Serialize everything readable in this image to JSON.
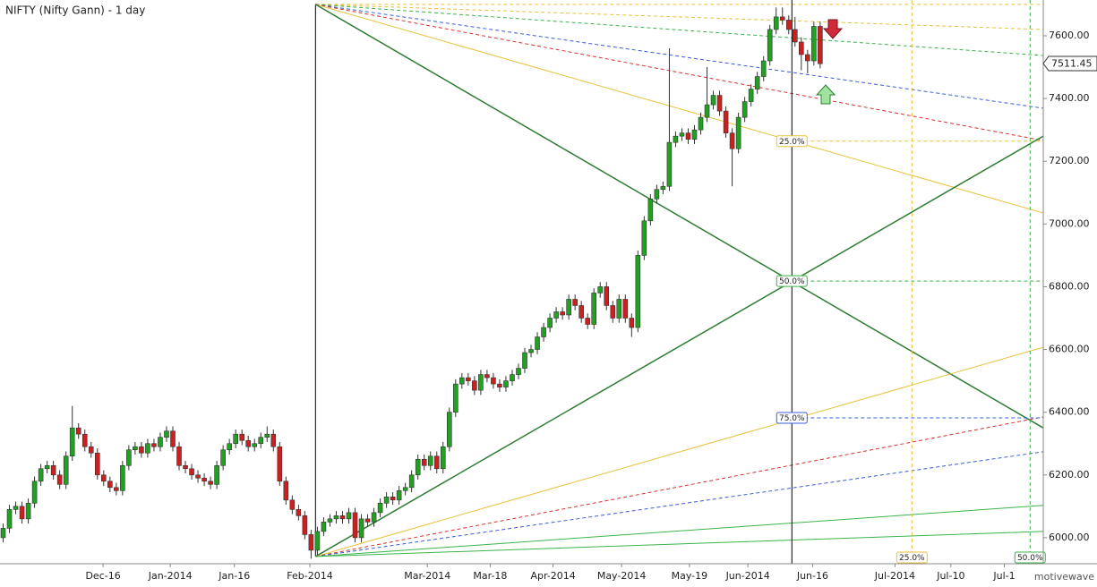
{
  "chart_data": {
    "type": "candlestick",
    "title": "NIFTY (Nifty Gann) - 1 day",
    "watermark": "motivewave",
    "colors": {
      "up": "#22a022",
      "down": "#cc2020",
      "wick": "#333333"
    },
    "xlim": [
      0,
      166
    ],
    "ylim": [
      5917,
      7714
    ],
    "yticks": [
      {
        "value": 6000,
        "label": "6000.00"
      },
      {
        "value": 6200,
        "label": "6200.00"
      },
      {
        "value": 6400,
        "label": "6400.00"
      },
      {
        "value": 6600,
        "label": "6600.00"
      },
      {
        "value": 6800,
        "label": "6800.00"
      },
      {
        "value": 7000,
        "label": "7000.00"
      },
      {
        "value": 7200,
        "label": "7200.00"
      },
      {
        "value": 7400,
        "label": "7400.00"
      },
      {
        "value": 7600,
        "label": "7600.00"
      }
    ],
    "xticks": [
      {
        "value": 16.4,
        "label": "Dec-16"
      },
      {
        "value": 27.1,
        "label": "Jan-2014"
      },
      {
        "value": 37.3,
        "label": "Jan-16"
      },
      {
        "value": 49.3,
        "label": "Feb-2014"
      },
      {
        "value": 68,
        "label": "Mar-2014"
      },
      {
        "value": 78,
        "label": "Mar-18"
      },
      {
        "value": 88,
        "label": "Apr-2014"
      },
      {
        "value": 98.9,
        "label": "May-2014"
      },
      {
        "value": 109.7,
        "label": "May-19"
      },
      {
        "value": 119,
        "label": "Jun-2014"
      },
      {
        "value": 129.3,
        "label": "Jun-16"
      },
      {
        "value": 142.4,
        "label": "Jul-2014"
      },
      {
        "value": 151.3,
        "label": "Jul-10"
      },
      {
        "value": 159.8,
        "label": "Jul-1"
      }
    ],
    "last_price": 7511.45,
    "x": [
      0,
      1,
      2,
      3,
      4,
      5,
      6,
      7,
      8,
      9,
      10,
      11,
      12,
      13,
      14,
      15,
      16,
      17,
      18,
      19,
      20,
      21,
      22,
      23,
      24,
      25,
      26,
      27,
      28,
      29,
      30,
      31,
      32,
      33,
      34,
      35,
      36,
      37,
      38,
      39,
      40,
      41,
      42,
      43,
      44,
      45,
      46,
      47,
      48,
      49,
      50,
      51,
      52,
      53,
      54,
      55,
      56,
      57,
      58,
      59,
      60,
      61,
      62,
      63,
      64,
      65,
      66,
      67,
      68,
      69,
      70,
      71,
      72,
      73,
      74,
      75,
      76,
      77,
      78,
      79,
      80,
      81,
      82,
      83,
      84,
      85,
      86,
      87,
      88,
      89,
      90,
      91,
      92,
      93,
      94,
      95,
      96,
      97,
      98,
      99,
      100,
      101,
      102,
      103,
      104,
      105,
      106,
      107,
      108,
      109,
      110,
      111,
      112,
      113,
      114,
      115,
      116,
      117,
      118,
      119,
      120,
      121,
      122,
      123,
      124,
      125,
      126,
      127,
      128,
      129,
      130
    ],
    "open": [
      6000,
      6030,
      6090,
      6100,
      6060,
      6110,
      6180,
      6220,
      6230,
      6200,
      6170,
      6260,
      6350,
      6330,
      6290,
      6270,
      6200,
      6180,
      6160,
      6150,
      6230,
      6280,
      6290,
      6270,
      6300,
      6290,
      6320,
      6340,
      6290,
      6230,
      6220,
      6200,
      6190,
      6180,
      6170,
      6230,
      6280,
      6300,
      6330,
      6310,
      6290,
      6300,
      6320,
      6330,
      6290,
      6180,
      6120,
      6090,
      6070,
      6010,
      5960,
      6020,
      6050,
      6060,
      6070,
      6060,
      6080,
      6000,
      6060,
      6050,
      6080,
      6110,
      6130,
      6120,
      6150,
      6160,
      6200,
      6250,
      6230,
      6260,
      6220,
      6290,
      6400,
      6490,
      6510,
      6500,
      6470,
      6520,
      6510,
      6490,
      6480,
      6500,
      6520,
      6540,
      6590,
      6600,
      6640,
      6670,
      6700,
      6720,
      6710,
      6760,
      6740,
      6700,
      6680,
      6780,
      6800,
      6740,
      6700,
      6760,
      6700,
      6670,
      6900,
      7010,
      7080,
      7110,
      7120,
      7260,
      7280,
      7290,
      7270,
      7300,
      7340,
      7380,
      7410,
      7360,
      7290,
      7240,
      7340,
      7390,
      7430,
      7470,
      7520,
      7620,
      7660,
      7650,
      7620,
      7580,
      7540,
      7520,
      7630
    ],
    "high": [
      6045,
      6105,
      6115,
      6115,
      6125,
      6195,
      6235,
      6245,
      6245,
      6215,
      6275,
      6420,
      6365,
      6345,
      6305,
      6285,
      6215,
      6195,
      6175,
      6245,
      6295,
      6305,
      6305,
      6315,
      6315,
      6335,
      6355,
      6355,
      6305,
      6245,
      6235,
      6215,
      6205,
      6195,
      6245,
      6295,
      6315,
      6345,
      6345,
      6325,
      6315,
      6335,
      6355,
      6345,
      6305,
      6195,
      6135,
      6105,
      6085,
      6025,
      6035,
      6065,
      6075,
      6085,
      6085,
      6095,
      6095,
      6075,
      6075,
      6095,
      6125,
      6145,
      6145,
      6165,
      6175,
      6215,
      6265,
      6265,
      6275,
      6275,
      6305,
      6415,
      6505,
      6525,
      6525,
      6515,
      6535,
      6535,
      6525,
      6505,
      6515,
      6535,
      6555,
      6605,
      6615,
      6655,
      6685,
      6715,
      6735,
      6735,
      6775,
      6775,
      6755,
      6715,
      6795,
      6815,
      6815,
      6755,
      6775,
      6775,
      6715,
      6915,
      7025,
      7095,
      7125,
      7135,
      7560,
      7295,
      7305,
      7305,
      7315,
      7355,
      7500,
      7425,
      7425,
      7375,
      7305,
      7355,
      7405,
      7445,
      7485,
      7535,
      7635,
      7690,
      7690,
      7665,
      7660,
      7595,
      7555,
      7645,
      7645
    ],
    "low": [
      5985,
      6015,
      6075,
      6045,
      6045,
      6095,
      6165,
      6205,
      6185,
      6155,
      6155,
      6245,
      6315,
      6275,
      6255,
      6185,
      6165,
      6145,
      6135,
      6135,
      6215,
      6265,
      6255,
      6255,
      6275,
      6275,
      6305,
      6275,
      6215,
      6205,
      6185,
      6175,
      6165,
      6155,
      6155,
      6215,
      6265,
      6285,
      6295,
      6275,
      6275,
      6285,
      6305,
      6275,
      6165,
      6105,
      6075,
      6055,
      5995,
      5933,
      5945,
      6005,
      6035,
      6045,
      6045,
      6045,
      5985,
      5985,
      6035,
      6035,
      6065,
      6095,
      6105,
      6105,
      6135,
      6145,
      6185,
      6215,
      6215,
      6205,
      6205,
      6275,
      6385,
      6475,
      6485,
      6455,
      6455,
      6495,
      6475,
      6465,
      6465,
      6485,
      6505,
      6525,
      6575,
      6585,
      6625,
      6655,
      6685,
      6695,
      6695,
      6725,
      6685,
      6665,
      6665,
      6765,
      6725,
      6685,
      6685,
      6685,
      6640,
      6655,
      6885,
      6995,
      7065,
      7095,
      7105,
      7245,
      7265,
      7255,
      7255,
      7285,
      7325,
      7365,
      7345,
      7275,
      7120,
      7225,
      7325,
      7375,
      7415,
      7455,
      7505,
      7605,
      7635,
      7605,
      7565,
      7490,
      7480,
      7505,
      7496
    ],
    "close": [
      6030,
      6090,
      6100,
      6060,
      6110,
      6180,
      6220,
      6230,
      6200,
      6170,
      6260,
      6350,
      6330,
      6290,
      6270,
      6200,
      6180,
      6160,
      6150,
      6230,
      6280,
      6290,
      6270,
      6300,
      6290,
      6320,
      6340,
      6290,
      6230,
      6220,
      6200,
      6190,
      6180,
      6170,
      6230,
      6280,
      6300,
      6330,
      6310,
      6290,
      6300,
      6320,
      6330,
      6290,
      6180,
      6120,
      6090,
      6070,
      6010,
      5960,
      6020,
      6050,
      6060,
      6070,
      6060,
      6080,
      6000,
      6060,
      6050,
      6080,
      6110,
      6130,
      6120,
      6150,
      6160,
      6200,
      6250,
      6230,
      6260,
      6220,
      6290,
      6400,
      6490,
      6510,
      6500,
      6470,
      6520,
      6510,
      6490,
      6480,
      6500,
      6520,
      6540,
      6590,
      6600,
      6640,
      6670,
      6700,
      6720,
      6710,
      6760,
      6740,
      6700,
      6680,
      6780,
      6800,
      6740,
      6700,
      6760,
      6700,
      6670,
      6900,
      7010,
      7080,
      7110,
      7120,
      7260,
      7280,
      7290,
      7270,
      7300,
      7340,
      7380,
      7410,
      7360,
      7290,
      7240,
      7340,
      7390,
      7430,
      7470,
      7520,
      7620,
      7660,
      7650,
      7620,
      7580,
      7540,
      7520,
      7630,
      7511
    ],
    "lines": [
      {
        "x": [
          50.2,
          50.2
        ],
        "y": [
          7700,
          5940
        ],
        "color": "#000000",
        "width": 1,
        "dash": false
      },
      {
        "x": [
          50.2,
          166
        ],
        "y": [
          7700,
          7700
        ],
        "color": "#e8c13a",
        "width": 1,
        "dash": true
      },
      {
        "x": [
          50.2,
          166
        ],
        "y": [
          7700,
          7620
        ],
        "color": "#e8c13a",
        "width": 1,
        "dash": true
      },
      {
        "x": [
          50.2,
          166
        ],
        "y": [
          7700,
          7537
        ],
        "color": "#3cb44b",
        "width": 1,
        "dash": true
      },
      {
        "x": [
          50.2,
          166
        ],
        "y": [
          7700,
          7369
        ],
        "color": "#3b5bdb",
        "width": 1,
        "dash": true
      },
      {
        "x": [
          50.2,
          166
        ],
        "y": [
          7700,
          7266
        ],
        "color": "#d63031",
        "width": 1,
        "dash": true
      },
      {
        "x": [
          50.2,
          166
        ],
        "y": [
          7700,
          7035
        ],
        "color": "#e8c13a",
        "width": 1,
        "dash": false
      },
      {
        "x": [
          50.2,
          166
        ],
        "y": [
          7700,
          6350
        ],
        "color": "#2e7d32",
        "width": 1.5,
        "dash": false
      },
      {
        "x": [
          50.2,
          166
        ],
        "y": [
          5940,
          7280
        ],
        "color": "#2e7d32",
        "width": 1.5,
        "dash": false
      },
      {
        "x": [
          50.2,
          166
        ],
        "y": [
          5940,
          6607
        ],
        "color": "#e8c13a",
        "width": 1,
        "dash": false
      },
      {
        "x": [
          50.2,
          166
        ],
        "y": [
          5940,
          6385
        ],
        "color": "#d63031",
        "width": 1,
        "dash": true
      },
      {
        "x": [
          50.2,
          166
        ],
        "y": [
          5940,
          6274
        ],
        "color": "#3b5bdb",
        "width": 1,
        "dash": true
      },
      {
        "x": [
          50.2,
          166
        ],
        "y": [
          5940,
          6103
        ],
        "color": "#3cb44b",
        "width": 1,
        "dash": false
      },
      {
        "x": [
          50.2,
          166
        ],
        "y": [
          5940,
          6020
        ],
        "color": "#3cb44b",
        "width": 1,
        "dash": false
      },
      {
        "x": [
          126,
          126
        ],
        "y": [
          7714,
          5917
        ],
        "color": "#000000",
        "width": 1,
        "dash": false
      }
    ],
    "levels": [
      {
        "value": 7264,
        "label": "25.0%",
        "color": "#e8c13a"
      },
      {
        "value": 6818,
        "label": "50.0%",
        "color": "#3cb44b"
      },
      {
        "value": 6382,
        "label": "75.0%",
        "color": "#3b5bdb"
      }
    ],
    "level_start": 126,
    "verticals": [
      {
        "value": 145.1,
        "label": "25.0%",
        "color": "#e8c13a"
      },
      {
        "value": 163.9,
        "label": "50.0%",
        "color": "#3cb44b"
      }
    ]
  }
}
